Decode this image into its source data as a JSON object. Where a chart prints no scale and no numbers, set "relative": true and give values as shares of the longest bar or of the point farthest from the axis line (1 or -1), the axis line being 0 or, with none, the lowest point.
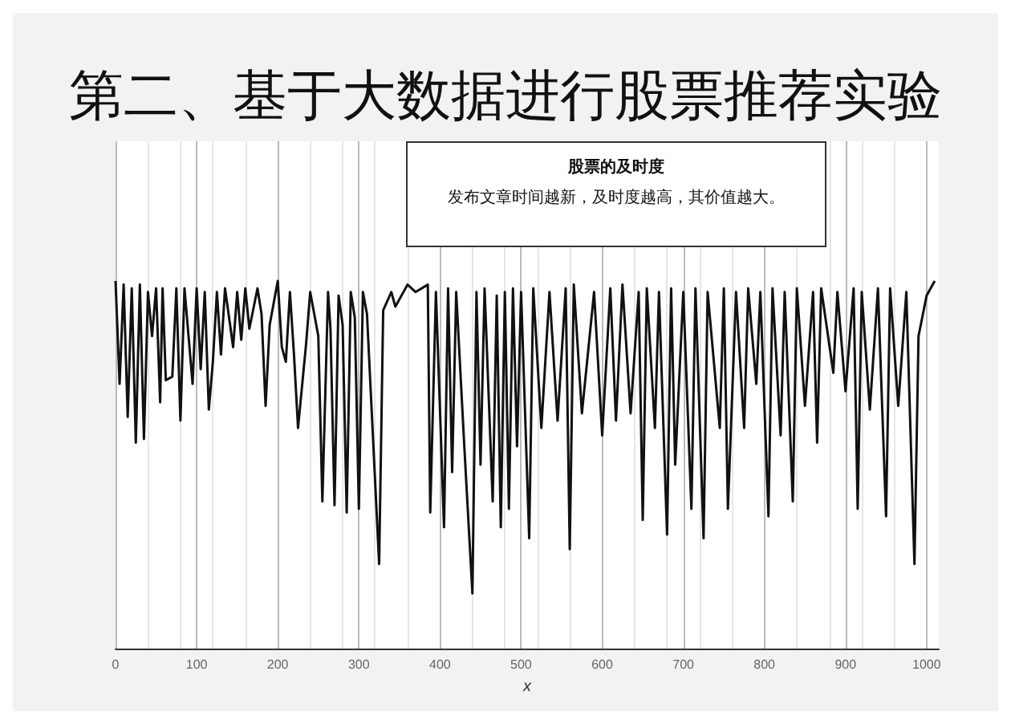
{
  "chart_data": {
    "type": "line",
    "title": "第二、基于大数据进行股票推荐实验",
    "xlabel": "x",
    "relative": true,
    "color": "#111111",
    "grid": "x",
    "marker": "none",
    "line_style": "solid",
    "xlim": [
      0,
      1015
    ],
    "xticks": [
      0,
      100,
      200,
      300,
      400,
      500,
      600,
      700,
      800,
      900,
      1000
    ],
    "annotations": [
      "股票的及时度",
      "发布文章时间越新，及时度越高，其价值越大。"
    ],
    "x": [
      0,
      5,
      10,
      15,
      20,
      25,
      30,
      35,
      40,
      45,
      50,
      55,
      58,
      62,
      70,
      75,
      80,
      85,
      95,
      100,
      105,
      110,
      115,
      120,
      125,
      130,
      135,
      145,
      150,
      155,
      160,
      165,
      175,
      180,
      185,
      190,
      200,
      205,
      210,
      215,
      220,
      225,
      235,
      240,
      250,
      255,
      262,
      265,
      270,
      275,
      280,
      285,
      290,
      295,
      300,
      305,
      310,
      325,
      330,
      340,
      345,
      360,
      370,
      385,
      388,
      395,
      405,
      410,
      415,
      420,
      430,
      440,
      445,
      450,
      455,
      465,
      470,
      475,
      480,
      485,
      490,
      495,
      500,
      510,
      515,
      525,
      535,
      545,
      555,
      560,
      565,
      575,
      590,
      600,
      610,
      617,
      625,
      635,
      645,
      650,
      655,
      665,
      670,
      680,
      685,
      690,
      700,
      710,
      715,
      725,
      730,
      745,
      750,
      755,
      765,
      775,
      780,
      790,
      795,
      805,
      810,
      820,
      825,
      835,
      840,
      850,
      860,
      865,
      870,
      885,
      890,
      900,
      910,
      915,
      920,
      930,
      940,
      950,
      955,
      965,
      975,
      985,
      990,
      1000,
      1010
    ],
    "values": [
      1.0,
      0.72,
      0.99,
      0.63,
      0.98,
      0.56,
      0.99,
      0.57,
      0.97,
      0.85,
      0.98,
      0.67,
      0.98,
      0.73,
      0.74,
      0.98,
      0.62,
      0.98,
      0.72,
      0.98,
      0.76,
      0.97,
      0.65,
      0.78,
      0.97,
      0.8,
      0.98,
      0.82,
      0.97,
      0.84,
      0.98,
      0.87,
      0.98,
      0.91,
      0.66,
      0.88,
      1.0,
      0.82,
      0.78,
      0.97,
      0.8,
      0.6,
      0.83,
      0.97,
      0.85,
      0.4,
      0.97,
      0.87,
      0.39,
      0.96,
      0.88,
      0.37,
      0.97,
      0.9,
      0.38,
      0.97,
      0.91,
      0.23,
      0.92,
      0.97,
      0.93,
      0.99,
      0.97,
      0.99,
      0.37,
      0.97,
      0.33,
      0.98,
      0.48,
      0.97,
      0.55,
      0.15,
      0.97,
      0.5,
      0.98,
      0.4,
      0.96,
      0.33,
      0.97,
      0.38,
      0.98,
      0.55,
      0.97,
      0.3,
      0.98,
      0.6,
      0.97,
      0.62,
      0.98,
      0.27,
      0.99,
      0.64,
      0.97,
      0.58,
      0.98,
      0.62,
      0.99,
      0.64,
      0.97,
      0.35,
      0.98,
      0.6,
      0.97,
      0.31,
      0.98,
      0.5,
      0.97,
      0.38,
      0.98,
      0.3,
      0.97,
      0.6,
      0.98,
      0.38,
      0.97,
      0.6,
      0.98,
      0.72,
      0.97,
      0.36,
      0.98,
      0.58,
      0.97,
      0.4,
      0.98,
      0.66,
      0.97,
      0.56,
      0.98,
      0.75,
      0.97,
      0.7,
      0.98,
      0.38,
      0.97,
      0.65,
      0.98,
      0.36,
      0.98,
      0.66,
      0.97,
      0.23,
      0.85,
      0.96,
      1.0
    ]
  }
}
